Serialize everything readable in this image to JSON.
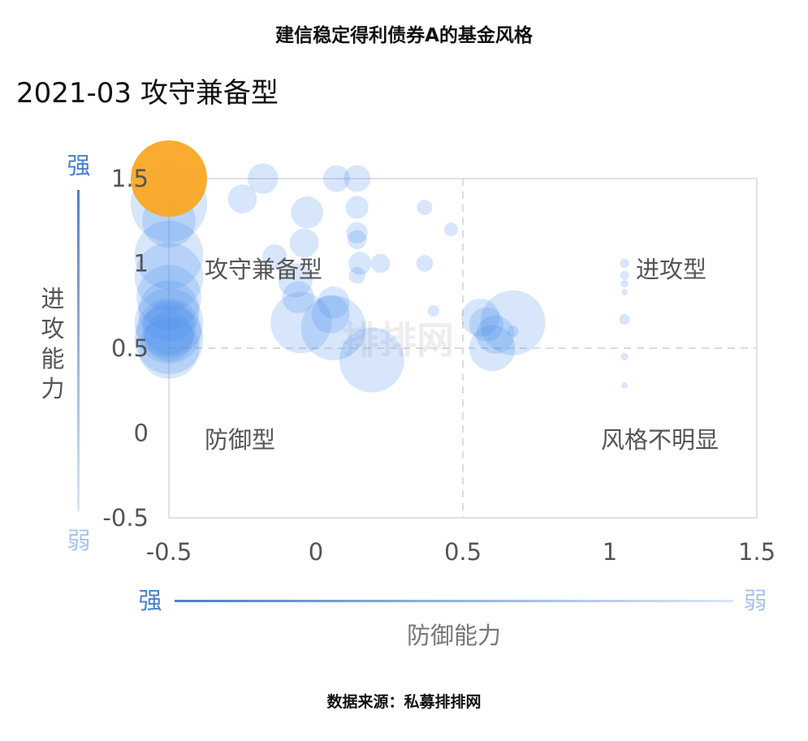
{
  "title": "建信稳定得利债券A的基金风格",
  "period_label": "2021-03 攻守兼备型",
  "source": "数据来源：私募排排网",
  "watermark": "排排网",
  "colors": {
    "highlight": "#F9A825",
    "bubble": "#4A8EEB",
    "bubble_fill_opacity": 0.22,
    "axis_gradient_strong": "#4A7FD0",
    "axis_gradient_weak": "#D8E6F8",
    "strong_text": "#4A7FD0",
    "weak_text": "#A8C5EC",
    "text": "#555555"
  },
  "chart_data": {
    "type": "scatter",
    "x_axis": {
      "label": "防御能力",
      "strong_label": "强",
      "weak_label": "弱",
      "range": [
        -0.5,
        1.5
      ],
      "ticks": [
        "-0.5",
        "0",
        "0.5",
        "1",
        "1.5"
      ]
    },
    "y_axis": {
      "label": "进攻能力",
      "strong_label": "强",
      "weak_label": "弱",
      "range": [
        -0.5,
        1.5
      ],
      "ticks": [
        "-0.5",
        "0",
        "0.5",
        "1",
        "1.5"
      ]
    },
    "dividers": {
      "x": 0.5,
      "y": 0.5
    },
    "quadrants": {
      "top_left": "攻守兼备型",
      "top_right": "进攻型",
      "bottom_left": "防御型",
      "bottom_right": "风格不明显"
    },
    "highlight": {
      "x": -0.5,
      "y": 1.5,
      "r": 1.0
    },
    "points": [
      {
        "x": -0.5,
        "y": 1.35,
        "r": 1.0
      },
      {
        "x": -0.5,
        "y": 1.25,
        "r": 0.7
      },
      {
        "x": -0.5,
        "y": 1.05,
        "r": 0.9
      },
      {
        "x": -0.5,
        "y": 0.92,
        "r": 0.9
      },
      {
        "x": -0.5,
        "y": 0.8,
        "r": 0.85
      },
      {
        "x": -0.5,
        "y": 0.72,
        "r": 0.8
      },
      {
        "x": -0.5,
        "y": 0.65,
        "r": 0.9
      },
      {
        "x": -0.5,
        "y": 0.6,
        "r": 0.85
      },
      {
        "x": -0.5,
        "y": 0.55,
        "r": 0.9
      },
      {
        "x": -0.5,
        "y": 0.5,
        "r": 0.8
      },
      {
        "x": -0.5,
        "y": 0.62,
        "r": 0.7
      },
      {
        "x": -0.5,
        "y": 0.57,
        "r": 0.65
      },
      {
        "x": -0.18,
        "y": 1.5,
        "r": 0.4
      },
      {
        "x": 0.07,
        "y": 1.5,
        "r": 0.35
      },
      {
        "x": 0.14,
        "y": 1.5,
        "r": 0.35
      },
      {
        "x": -0.25,
        "y": 1.38,
        "r": 0.38
      },
      {
        "x": -0.03,
        "y": 1.3,
        "r": 0.42
      },
      {
        "x": 0.14,
        "y": 1.33,
        "r": 0.3
      },
      {
        "x": 0.37,
        "y": 1.33,
        "r": 0.2
      },
      {
        "x": 0.46,
        "y": 1.2,
        "r": 0.18
      },
      {
        "x": 0.14,
        "y": 1.18,
        "r": 0.28
      },
      {
        "x": 0.14,
        "y": 1.14,
        "r": 0.25
      },
      {
        "x": -0.04,
        "y": 1.12,
        "r": 0.38
      },
      {
        "x": -0.14,
        "y": 1.04,
        "r": 0.32
      },
      {
        "x": 0.15,
        "y": 1.0,
        "r": 0.3
      },
      {
        "x": 0.22,
        "y": 1.0,
        "r": 0.25
      },
      {
        "x": 0.37,
        "y": 1.0,
        "r": 0.22
      },
      {
        "x": 0.14,
        "y": 0.93,
        "r": 0.22
      },
      {
        "x": -0.07,
        "y": 0.9,
        "r": 0.45
      },
      {
        "x": -0.06,
        "y": 0.8,
        "r": 0.42
      },
      {
        "x": 0.06,
        "y": 0.77,
        "r": 0.42
      },
      {
        "x": 0.05,
        "y": 0.7,
        "r": 0.5
      },
      {
        "x": -0.05,
        "y": 0.65,
        "r": 0.8
      },
      {
        "x": 0.06,
        "y": 0.62,
        "r": 0.85
      },
      {
        "x": 0.19,
        "y": 0.43,
        "r": 0.85
      },
      {
        "x": 0.4,
        "y": 0.72,
        "r": 0.15
      },
      {
        "x": 0.56,
        "y": 0.68,
        "r": 0.5
      },
      {
        "x": 0.58,
        "y": 0.64,
        "r": 0.45
      },
      {
        "x": 0.61,
        "y": 0.58,
        "r": 0.5
      },
      {
        "x": 0.67,
        "y": 0.65,
        "r": 0.85
      },
      {
        "x": 0.6,
        "y": 0.5,
        "r": 0.6
      },
      {
        "x": 0.67,
        "y": 0.6,
        "r": 0.15
      },
      {
        "x": 1.05,
        "y": 1.0,
        "r": 0.12
      },
      {
        "x": 1.05,
        "y": 0.93,
        "r": 0.12
      },
      {
        "x": 1.05,
        "y": 0.88,
        "r": 0.1
      },
      {
        "x": 1.05,
        "y": 0.83,
        "r": 0.08
      },
      {
        "x": 1.05,
        "y": 0.67,
        "r": 0.14
      },
      {
        "x": 1.05,
        "y": 0.45,
        "r": 0.1
      },
      {
        "x": 1.05,
        "y": 0.28,
        "r": 0.08
      }
    ]
  }
}
